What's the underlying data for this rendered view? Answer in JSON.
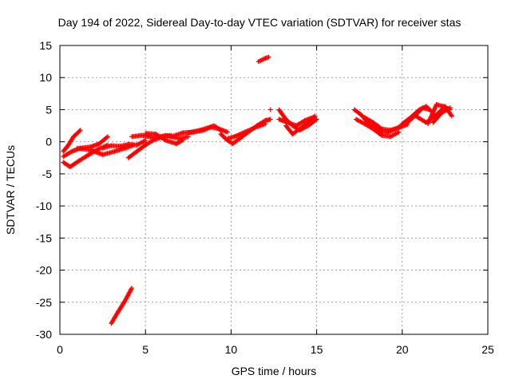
{
  "chart_data": {
    "type": "scatter",
    "title": "Day 194 of 2022, Sidereal Day-to-day VTEC variation (SDTVAR) for receiver stas",
    "xlabel": "GPS time / hours",
    "ylabel": "SDTVAR / TECUs",
    "xlim": [
      0,
      25
    ],
    "ylim": [
      -30,
      15
    ],
    "xticks": [
      0,
      5,
      10,
      15,
      20,
      25
    ],
    "yticks": [
      -30,
      -25,
      -20,
      -15,
      -10,
      -5,
      0,
      5,
      10,
      15
    ],
    "grid": true,
    "marker": "+",
    "color": "#ff0000",
    "segments": [
      {
        "x": [
          0.2,
          0.5,
          0.8,
          1.2
        ],
        "y": [
          -1.5,
          -0.5,
          0.8,
          1.8
        ]
      },
      {
        "x": [
          0.2,
          0.7,
          1.2,
          1.8,
          2.3,
          2.8
        ],
        "y": [
          -2.3,
          -1.5,
          -1.0,
          -0.8,
          -0.3,
          0.8
        ]
      },
      {
        "x": [
          0.2,
          0.6,
          1.1,
          1.7,
          2.2,
          2.8
        ],
        "y": [
          -3.2,
          -3.9,
          -3.0,
          -2.0,
          -1.2,
          -0.5
        ]
      },
      {
        "x": [
          1.0,
          1.8,
          2.5,
          3.2,
          3.8,
          4.3
        ],
        "y": [
          -1.0,
          -1.3,
          -2.0,
          -1.5,
          -1.0,
          -0.5
        ]
      },
      {
        "x": [
          2.5,
          3.0,
          3.5,
          4.0,
          4.5,
          5.0
        ],
        "y": [
          -1.0,
          -0.6,
          -0.7,
          -0.4,
          -0.5,
          0.2
        ]
      },
      {
        "x": [
          4.0,
          4.5,
          5.0,
          5.5,
          6.0,
          6.5
        ],
        "y": [
          -2.5,
          -1.5,
          -0.5,
          0.3,
          0.8,
          1.0
        ]
      },
      {
        "x": [
          4.2,
          4.8,
          5.5,
          6.2,
          7.0,
          7.5
        ],
        "y": [
          0.8,
          1.0,
          0.6,
          1.0,
          0.5,
          0.8
        ]
      },
      {
        "x": [
          5.0,
          5.6,
          6.2,
          6.8,
          7.2
        ],
        "y": [
          1.3,
          1.2,
          0.2,
          -0.3,
          0.3
        ]
      },
      {
        "x": [
          6.5,
          7.2,
          7.8,
          8.4,
          9.0,
          9.4
        ],
        "y": [
          0.8,
          1.4,
          1.5,
          1.8,
          2.5,
          1.8
        ]
      },
      {
        "x": [
          7.5,
          8.2,
          8.8,
          9.3,
          9.8
        ],
        "y": [
          1.4,
          1.8,
          2.3,
          2.0,
          1.5
        ]
      },
      {
        "x": [
          9.4,
          9.8,
          10.1,
          10.5,
          11.0,
          11.5,
          12.0,
          12.3
        ],
        "y": [
          1.2,
          0.2,
          -0.3,
          0.5,
          1.5,
          2.5,
          3.3,
          3.5
        ]
      },
      {
        "x": [
          9.8,
          10.2,
          10.8,
          11.4,
          12.0
        ],
        "y": [
          0.5,
          0.8,
          1.5,
          2.2,
          2.8
        ]
      },
      {
        "x": [
          11.6,
          12.0,
          12.2
        ],
        "y": [
          12.5,
          13.0,
          13.2
        ]
      },
      {
        "x": [
          12.3
        ],
        "y": [
          5.0
        ]
      },
      {
        "x": [
          12.8,
          13.2,
          13.6,
          14.0,
          14.5,
          15.0
        ],
        "y": [
          5.0,
          3.5,
          2.5,
          1.8,
          2.5,
          3.5
        ]
      },
      {
        "x": [
          12.8,
          13.3,
          13.8,
          14.3,
          14.8
        ],
        "y": [
          3.5,
          3.0,
          2.5,
          3.3,
          3.8
        ]
      },
      {
        "x": [
          13.2,
          13.6,
          14.0,
          14.5,
          14.9
        ],
        "y": [
          2.5,
          1.2,
          2.0,
          3.0,
          4.0
        ]
      },
      {
        "x": [
          17.2,
          17.6,
          18.0,
          18.4,
          18.8,
          19.2,
          19.6,
          20.0
        ],
        "y": [
          5.0,
          4.2,
          3.0,
          2.3,
          1.5,
          1.5,
          2.0,
          2.5
        ]
      },
      {
        "x": [
          17.3,
          17.8,
          18.3,
          18.8,
          19.3,
          19.8
        ],
        "y": [
          3.5,
          2.8,
          2.0,
          1.0,
          0.8,
          1.5
        ]
      },
      {
        "x": [
          17.8,
          18.3,
          18.8,
          19.3,
          19.8,
          20.3
        ],
        "y": [
          3.8,
          3.0,
          2.0,
          1.8,
          2.2,
          2.7
        ]
      },
      {
        "x": [
          19.8,
          20.3,
          20.8,
          21.2,
          21.6
        ],
        "y": [
          2.3,
          3.0,
          4.2,
          5.3,
          5.0
        ]
      },
      {
        "x": [
          20.0,
          20.5,
          21.0,
          21.4,
          21.8
        ],
        "y": [
          2.8,
          3.8,
          5.0,
          5.5,
          4.5
        ]
      },
      {
        "x": [
          20.8,
          21.4,
          22.0,
          22.5,
          22.9
        ],
        "y": [
          4.0,
          3.0,
          4.2,
          5.5,
          4.0
        ]
      },
      {
        "x": [
          21.5,
          22.0,
          22.4,
          22.8
        ],
        "y": [
          2.8,
          5.8,
          5.5,
          5.0
        ]
      },
      {
        "x": [
          21.8,
          22.3,
          22.8
        ],
        "y": [
          3.0,
          4.5,
          5.3
        ]
      },
      {
        "x": [
          3.0,
          3.4,
          3.8,
          4.2
        ],
        "y": [
          -28.3,
          -26.5,
          -24.8,
          -22.8
        ]
      }
    ]
  }
}
